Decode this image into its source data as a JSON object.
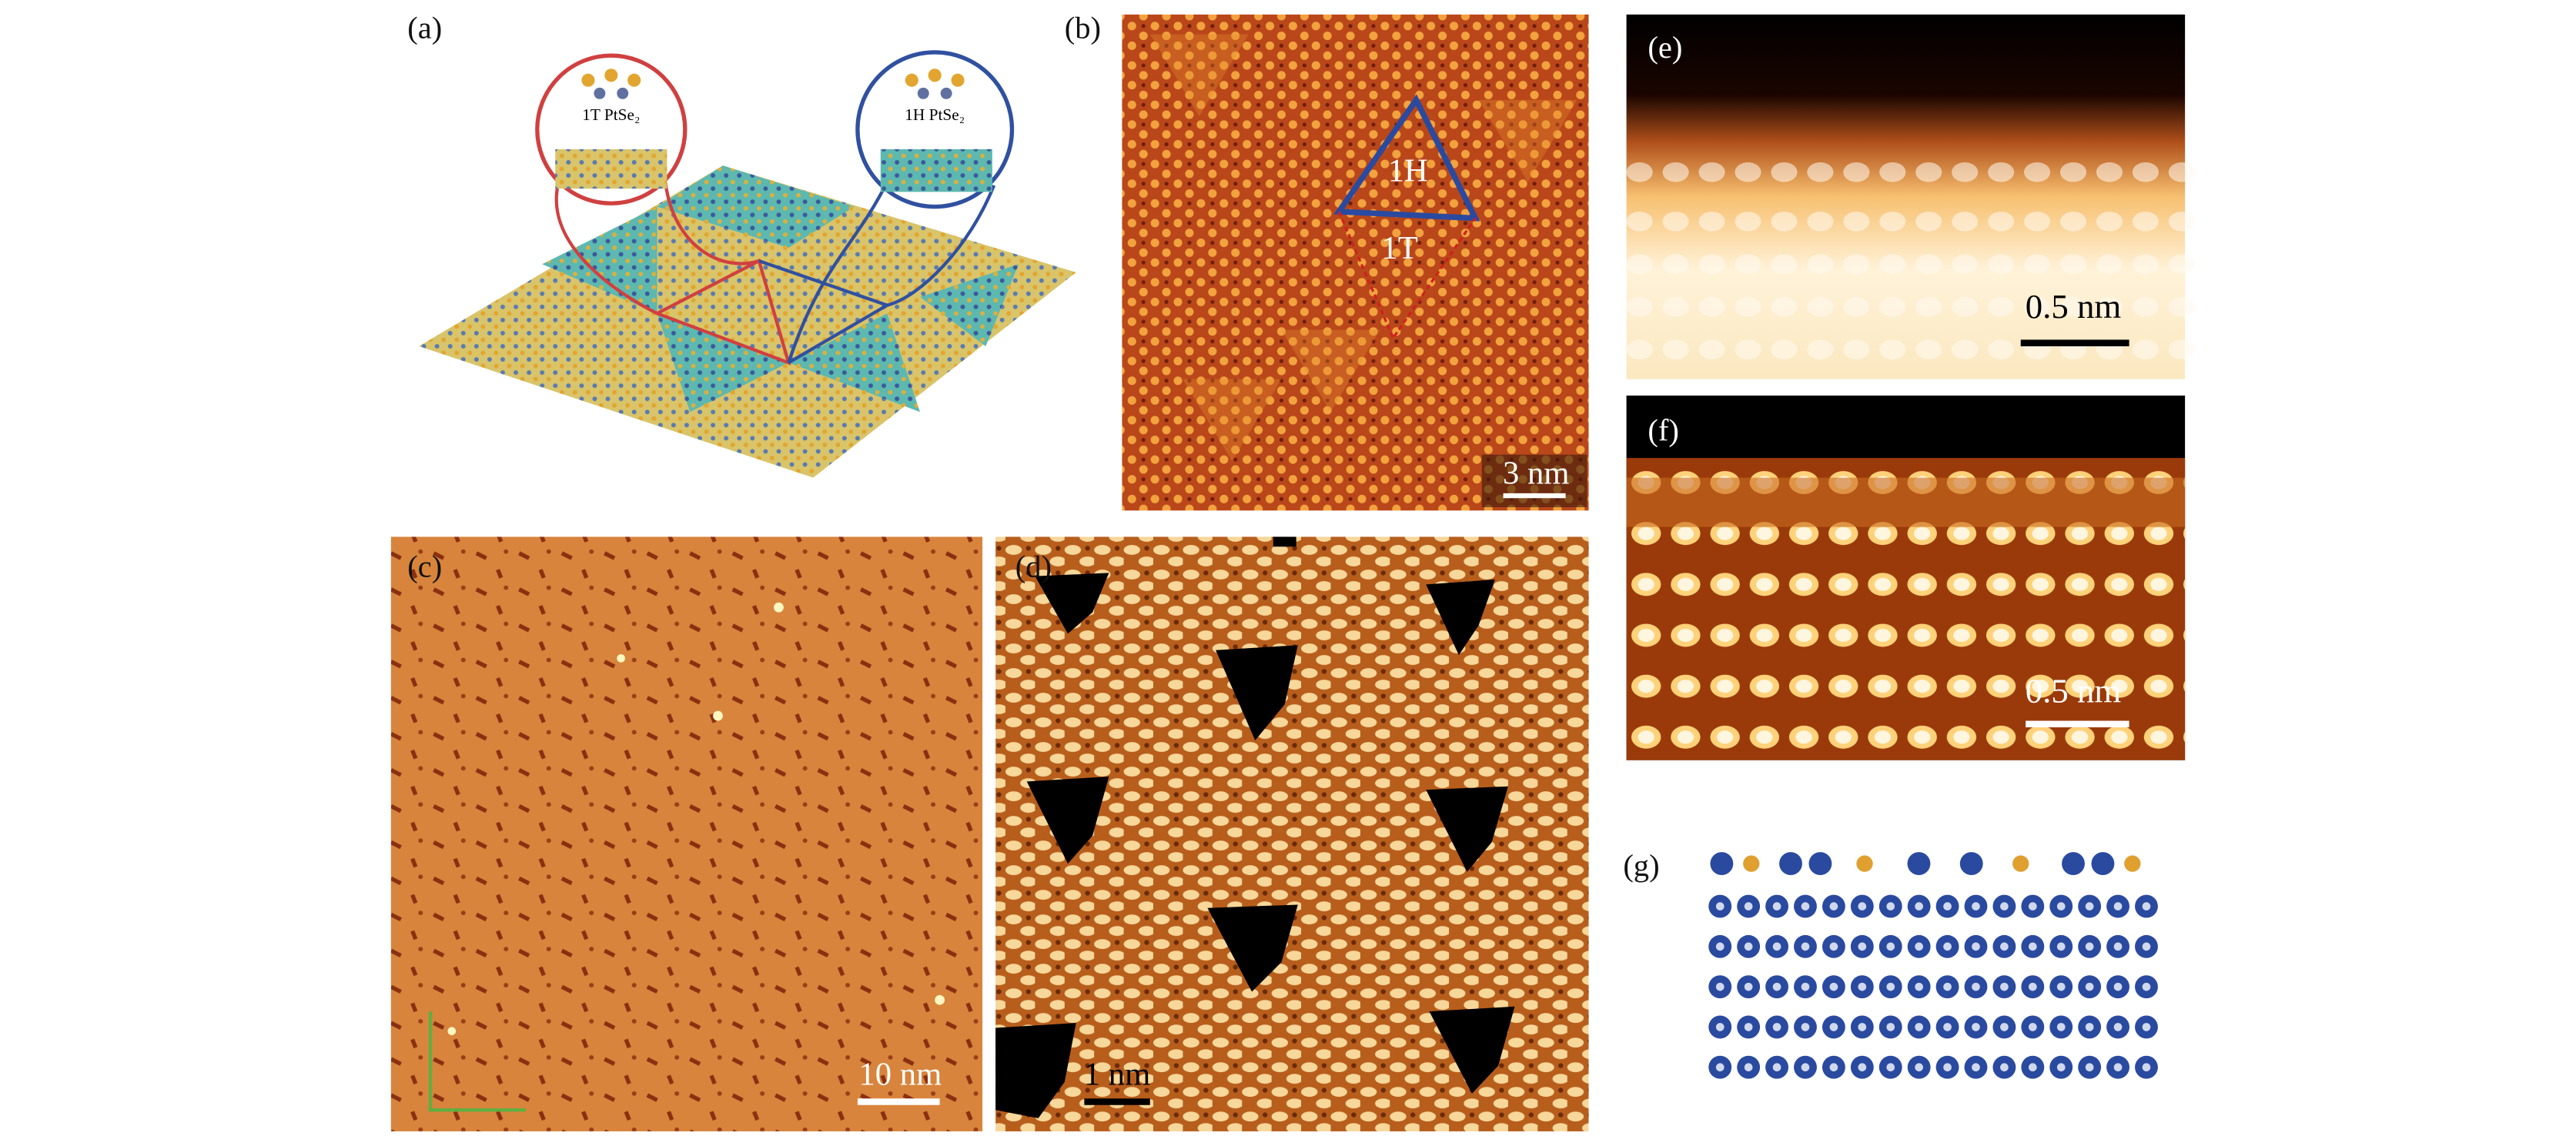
{
  "panels": [
    {
      "label": "(a)",
      "annotations": [
        "1T PtSe₂",
        "1H PtSe₂"
      ]
    },
    {
      "label": "(b)",
      "annotations": [
        "1H",
        "1T"
      ],
      "scale_bar": "3 nm"
    },
    {
      "label": "(c)",
      "scale_bar": "10 nm"
    },
    {
      "label": "(d)",
      "scale_bar": "1 nm"
    },
    {
      "label": "(e)",
      "scale_bar": "0.5 nm"
    },
    {
      "label": "(f)",
      "scale_bar": "0.5 nm"
    },
    {
      "label": "(g)"
    }
  ]
}
